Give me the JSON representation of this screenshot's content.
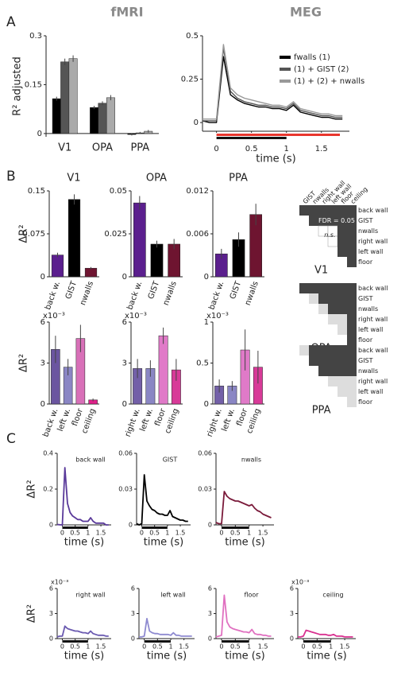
{
  "panel_labels": [
    "A",
    "B",
    "C"
  ],
  "chart_data": [
    {
      "type": "bar",
      "title": "fMRI",
      "y_label": "R² adjusted",
      "categories": [
        "V1",
        "OPA",
        "PPA"
      ],
      "series": [
        {
          "color": "#000000",
          "values": [
            0.107,
            0.08,
            -0.003
          ],
          "errors": [
            0.006,
            0.005,
            0.003
          ]
        },
        {
          "color": "#555555",
          "values": [
            0.22,
            0.093,
            0.002
          ],
          "errors": [
            0.01,
            0.006,
            0.003
          ]
        },
        {
          "color": "#aaaaaa",
          "values": [
            0.23,
            0.11,
            0.007
          ],
          "errors": [
            0.01,
            0.008,
            0.004
          ]
        }
      ],
      "ylim": [
        -0.01,
        0.3
      ],
      "yticks": [
        0,
        0.15,
        0.3
      ]
    },
    {
      "type": "line",
      "title": "MEG",
      "x_label": "time (s)",
      "legend": "upper right",
      "x": [
        -0.2,
        -0.1,
        0,
        0.1,
        0.2,
        0.3,
        0.4,
        0.5,
        0.6,
        0.7,
        0.8,
        0.9,
        1,
        1.1,
        1.2,
        1.3,
        1.4,
        1.5,
        1.6,
        1.7,
        1.8
      ],
      "series": [
        {
          "name": "fwalls (1)",
          "color": "#000000",
          "values": [
            0.01,
            0,
            0,
            0.38,
            0.16,
            0.13,
            0.11,
            0.1,
            0.09,
            0.09,
            0.08,
            0.08,
            0.07,
            0.1,
            0.06,
            0.05,
            0.04,
            0.03,
            0.03,
            0.02,
            0.02
          ]
        },
        {
          "name": "(1) + GIST (2)",
          "color": "#555555",
          "values": [
            0.01,
            0.01,
            0.01,
            0.43,
            0.18,
            0.14,
            0.12,
            0.11,
            0.1,
            0.1,
            0.09,
            0.09,
            0.08,
            0.11,
            0.07,
            0.06,
            0.05,
            0.04,
            0.04,
            0.03,
            0.03
          ]
        },
        {
          "name": "(1) + (2) + nwalls",
          "color": "#999999",
          "values": [
            0.02,
            0.02,
            0.02,
            0.45,
            0.2,
            0.16,
            0.14,
            0.13,
            0.12,
            0.11,
            0.1,
            0.1,
            0.09,
            0.12,
            0.08,
            0.07,
            0.06,
            0.05,
            0.05,
            0.04,
            0.04
          ]
        }
      ],
      "xlim": [
        -0.2,
        1.9
      ],
      "xticks": [
        0,
        0.5,
        1,
        1.5
      ],
      "ylim": [
        -0.05,
        0.5
      ],
      "yticks": [
        0,
        0.25,
        0.5
      ]
    },
    {
      "type": "bar",
      "title": "V1",
      "y_label": "ΔR²",
      "categories": [
        "back w.",
        "GIST",
        "nwalls"
      ],
      "values": [
        0.038,
        0.135,
        0.015
      ],
      "errors": [
        0.004,
        0.009,
        0.002
      ],
      "colors": [
        "#5b1f8e",
        "#000000",
        "#6e1430"
      ],
      "ylim": [
        0,
        0.15
      ],
      "yticks": [
        0,
        0.075,
        0.15
      ]
    },
    {
      "type": "bar",
      "title": "OPA",
      "categories": [
        "back w.",
        "GIST",
        "nwalls"
      ],
      "values": [
        0.043,
        0.019,
        0.019
      ],
      "errors": [
        0.004,
        0.002,
        0.003
      ],
      "colors": [
        "#5b1f8e",
        "#000000",
        "#6e1430"
      ],
      "ylim": [
        0,
        0.05
      ],
      "yticks": [
        0,
        0.025,
        0.05
      ]
    },
    {
      "type": "bar",
      "title": "PPA",
      "categories": [
        "back w.",
        "GIST",
        "nwalls"
      ],
      "values": [
        0.0032,
        0.0052,
        0.0087
      ],
      "errors": [
        0.0007,
        0.001,
        0.0015
      ],
      "colors": [
        "#5b1f8e",
        "#000000",
        "#6e1430"
      ],
      "ylim": [
        0,
        0.012
      ],
      "yticks": [
        0,
        0.006,
        0.012
      ]
    },
    {
      "type": "bar",
      "y_label": "ΔR²",
      "y_multiplier": "x10⁻³",
      "categories": [
        "back w.",
        "left w.",
        "floor",
        "ceiling"
      ],
      "values": [
        4.0,
        2.7,
        4.8,
        0.3
      ],
      "errors": [
        1.0,
        0.6,
        1.0,
        0.1
      ],
      "colors": [
        "#6b55a0",
        "#8a86c4",
        "#d870b8",
        "#e0208a"
      ],
      "ylim": [
        0,
        6
      ],
      "yticks": [
        0,
        3,
        6
      ]
    },
    {
      "type": "bar",
      "y_multiplier": "x10⁻³",
      "categories": [
        "right w.",
        "left w.",
        "floor",
        "ceiling"
      ],
      "values": [
        2.6,
        2.6,
        5.0,
        2.5
      ],
      "errors": [
        0.7,
        0.6,
        0.6,
        0.8
      ],
      "colors": [
        "#7360a8",
        "#8a86c4",
        "#e07ac8",
        "#d83a98"
      ],
      "ylim": [
        0,
        6
      ],
      "yticks": [
        0,
        3,
        6
      ]
    },
    {
      "type": "bar",
      "y_multiplier": "x10⁻³",
      "categories": [
        "right w.",
        "left w.",
        "floor",
        "ceiling"
      ],
      "values": [
        0.22,
        0.22,
        0.66,
        0.45
      ],
      "errors": [
        0.08,
        0.06,
        0.25,
        0.2
      ],
      "colors": [
        "#7360a8",
        "#8a86c4",
        "#e07ac8",
        "#d83a98"
      ],
      "ylim": [
        0,
        1
      ],
      "yticks": [
        0,
        0.5,
        1
      ]
    },
    {
      "type": "matrix",
      "title": "V1",
      "col_labels": [
        "GIST",
        "nwalls",
        "right wall",
        "left wall",
        "floor",
        "ceiling"
      ],
      "row_labels": [
        "back wall",
        "GIST",
        "nwalls",
        "right wall",
        "left wall",
        "floor"
      ],
      "annotations": [
        "FDR = 0.05",
        "n.s."
      ],
      "cell_colors": [
        [
          "#444444",
          "#444444",
          "#444444",
          "#444444",
          "#444444",
          "#444444"
        ],
        [
          "#444444",
          "#444444",
          "#444444",
          "#444444",
          "#444444"
        ],
        [
          "#ffffff",
          "#ffffff",
          "#444444",
          "#444444"
        ],
        [
          "#ffffff",
          "#444444",
          "#444444"
        ],
        [
          "#444444",
          "#444444"
        ],
        [
          "#444444"
        ]
      ]
    },
    {
      "type": "matrix",
      "title": "OPA",
      "row_labels": [
        "back wall",
        "GIST",
        "nwalls",
        "right wall",
        "left wall",
        "floor"
      ],
      "cell_colors": [
        [
          "#444444",
          "#444444",
          "#444444",
          "#444444",
          "#444444",
          "#444444"
        ],
        [
          "#dddddd",
          "#444444",
          "#444444",
          "#444444",
          "#444444"
        ],
        [
          "#dddddd",
          "#444444",
          "#444444",
          "#444444"
        ],
        [
          "#dddddd",
          "#dddddd",
          "#444444"
        ],
        [
          "#dddddd",
          "#444444"
        ],
        [
          "#444444"
        ]
      ]
    },
    {
      "type": "matrix",
      "title": "PPA",
      "row_labels": [
        "back wall",
        "GIST",
        "nwalls",
        "right wall",
        "left wall",
        "floor"
      ],
      "cell_colors": [
        [
          "#dddddd",
          "#444444",
          "#444444",
          "#444444",
          "#444444",
          "#444444"
        ],
        [
          "#444444",
          "#444444",
          "#444444",
          "#444444",
          "#444444"
        ],
        [
          "#444444",
          "#444444",
          "#444444",
          "#444444"
        ],
        [
          "#dddddd",
          "#dddddd",
          "#dddddd"
        ],
        [
          "#dddddd",
          "#dddddd"
        ],
        [
          "#dddddd"
        ]
      ]
    },
    {
      "type": "line",
      "title": "back wall",
      "y_label": "ΔR²",
      "x_label": "time (s)",
      "x": [
        -0.2,
        -0.1,
        0,
        0.1,
        0.2,
        0.3,
        0.4,
        0.5,
        0.6,
        0.7,
        0.8,
        0.9,
        1,
        1.1,
        1.2,
        1.3,
        1.4,
        1.5,
        1.6,
        1.7,
        1.8
      ],
      "series": [
        {
          "color": "#5a3a9a",
          "values": [
            0.002,
            0.001,
            0,
            0.32,
            0.12,
            0.07,
            0.05,
            0.04,
            0.03,
            0.03,
            0.02,
            0.02,
            0.02,
            0.04,
            0.02,
            0.01,
            0.01,
            0.01,
            0.01,
            0,
            0
          ]
        }
      ],
      "xlim": [
        -0.2,
        1.9
      ],
      "xticks": [
        0,
        0.5,
        1,
        1.5
      ],
      "ylim": [
        0,
        0.4
      ],
      "yticks": [
        0,
        0.2,
        0.4
      ]
    },
    {
      "type": "line",
      "title": "GIST",
      "x_label": "time (s)",
      "x": [
        -0.2,
        -0.1,
        0,
        0.1,
        0.2,
        0.3,
        0.4,
        0.5,
        0.6,
        0.7,
        0.8,
        0.9,
        1,
        1.1,
        1.2,
        1.3,
        1.4,
        1.5,
        1.6,
        1.7,
        1.8
      ],
      "series": [
        {
          "color": "#000000",
          "values": [
            0.001,
            0,
            0.001,
            0.042,
            0.02,
            0.016,
            0.013,
            0.012,
            0.01,
            0.009,
            0.009,
            0.008,
            0.008,
            0.012,
            0.007,
            0.006,
            0.005,
            0.004,
            0.004,
            0.003,
            0.003
          ]
        }
      ],
      "xlim": [
        -0.2,
        1.9
      ],
      "xticks": [
        0,
        0.5,
        1,
        1.5
      ],
      "ylim": [
        0,
        0.06
      ],
      "yticks": [
        0,
        0.03,
        0.06
      ]
    },
    {
      "type": "line",
      "title": "nwalls",
      "x_label": "time (s)",
      "x": [
        -0.2,
        -0.1,
        0,
        0.1,
        0.2,
        0.3,
        0.4,
        0.5,
        0.6,
        0.7,
        0.8,
        0.9,
        1,
        1.1,
        1.2,
        1.3,
        1.4,
        1.5,
        1.6,
        1.7,
        1.8
      ],
      "series": [
        {
          "color": "#7a1a3a",
          "values": [
            0.002,
            0.001,
            0.001,
            0.028,
            0.024,
            0.022,
            0.021,
            0.02,
            0.02,
            0.019,
            0.018,
            0.017,
            0.016,
            0.017,
            0.014,
            0.012,
            0.011,
            0.009,
            0.008,
            0.007,
            0.006
          ]
        }
      ],
      "xlim": [
        -0.2,
        1.9
      ],
      "xticks": [
        0,
        0.5,
        1,
        1.5
      ],
      "ylim": [
        0,
        0.06
      ],
      "yticks": [
        0,
        0.03,
        0.06
      ]
    },
    {
      "type": "line",
      "title": "right wall",
      "y_label": "ΔR²",
      "y_multiplier": "x10⁻³",
      "x_label": "time (s)",
      "x": [
        -0.2,
        -0.1,
        0,
        0.1,
        0.2,
        0.3,
        0.4,
        0.5,
        0.6,
        0.7,
        0.8,
        0.9,
        1,
        1.1,
        1.2,
        1.3,
        1.4,
        1.5,
        1.6,
        1.7,
        1.8
      ],
      "series": [
        {
          "color": "#6a5ab0",
          "values": [
            0.2,
            0.3,
            0.3,
            1.5,
            1.2,
            1.1,
            1.0,
            0.9,
            0.9,
            0.8,
            0.7,
            0.7,
            0.6,
            0.9,
            0.6,
            0.5,
            0.4,
            0.4,
            0.4,
            0.3,
            0.3
          ]
        }
      ],
      "xlim": [
        -0.2,
        1.9
      ],
      "xticks": [
        0,
        0.5,
        1,
        1.5
      ],
      "ylim": [
        0,
        6
      ],
      "yticks": [
        0,
        3,
        6
      ]
    },
    {
      "type": "line",
      "title": "left wall",
      "x_label": "time (s)",
      "x": [
        -0.2,
        -0.1,
        0,
        0.1,
        0.2,
        0.3,
        0.4,
        0.5,
        0.6,
        0.7,
        0.8,
        0.9,
        1,
        1.1,
        1.2,
        1.3,
        1.4,
        1.5,
        1.6,
        1.7,
        1.8
      ],
      "series": [
        {
          "color": "#8e8ad0",
          "values": [
            0.2,
            0.2,
            0.3,
            2.4,
            0.9,
            0.7,
            0.6,
            0.6,
            0.5,
            0.5,
            0.5,
            0.5,
            0.4,
            0.7,
            0.4,
            0.4,
            0.3,
            0.3,
            0.3,
            0.3,
            0.3
          ]
        }
      ],
      "xlim": [
        -0.2,
        1.9
      ],
      "xticks": [
        0,
        0.5,
        1,
        1.5
      ],
      "ylim": [
        0,
        6
      ],
      "yticks": [
        0,
        3,
        6
      ]
    },
    {
      "type": "line",
      "title": "floor",
      "x_label": "time (s)",
      "x": [
        -0.2,
        -0.1,
        0,
        0.1,
        0.2,
        0.3,
        0.4,
        0.5,
        0.6,
        0.7,
        0.8,
        0.9,
        1,
        1.1,
        1.2,
        1.3,
        1.4,
        1.5,
        1.6,
        1.7,
        1.8
      ],
      "series": [
        {
          "color": "#e070c0",
          "values": [
            0.2,
            0.3,
            0.4,
            5.2,
            2.0,
            1.4,
            1.2,
            1.1,
            1.0,
            0.9,
            0.8,
            0.8,
            0.7,
            1.1,
            0.6,
            0.5,
            0.5,
            0.4,
            0.4,
            0.3,
            0.3
          ]
        }
      ],
      "xlim": [
        -0.2,
        1.9
      ],
      "xticks": [
        0,
        0.5,
        1,
        1.5
      ],
      "ylim": [
        0,
        6
      ],
      "yticks": [
        0,
        3,
        6
      ]
    },
    {
      "type": "line",
      "title": "ceiling",
      "y_multiplier": "x10⁻³",
      "x_label": "time (s)",
      "x": [
        -0.2,
        -0.1,
        0,
        0.1,
        0.2,
        0.3,
        0.4,
        0.5,
        0.6,
        0.7,
        0.8,
        0.9,
        1,
        1.1,
        1.2,
        1.3,
        1.4,
        1.5,
        1.6,
        1.7,
        1.8
      ],
      "series": [
        {
          "color": "#d8308f",
          "values": [
            0.2,
            0.2,
            0.3,
            1.0,
            0.9,
            0.8,
            0.7,
            0.6,
            0.5,
            0.5,
            0.5,
            0.4,
            0.4,
            0.5,
            0.3,
            0.3,
            0.3,
            0.2,
            0.2,
            0.2,
            0.2
          ]
        }
      ],
      "xlim": [
        -0.2,
        1.9
      ],
      "xticks": [
        0,
        0.5,
        1,
        1.5
      ],
      "ylim": [
        0,
        6
      ],
      "yticks": [
        0,
        3,
        6
      ]
    }
  ]
}
